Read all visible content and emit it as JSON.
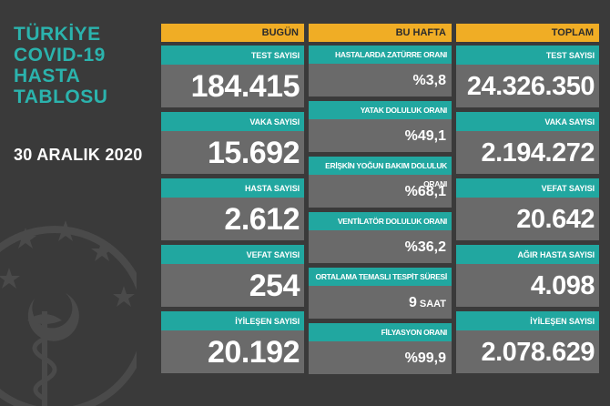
{
  "title_lines": [
    "TÜRKİYE",
    "COVID-19",
    "HASTA",
    "TABLOSU"
  ],
  "date": "30 ARALIK 2020",
  "today": {
    "header": "BUGÜN",
    "items": [
      {
        "label": "TEST SAYISI",
        "value": "184.415"
      },
      {
        "label": "VAKA SAYISI",
        "value": "15.692"
      },
      {
        "label": "HASTA SAYISI",
        "value": "2.612"
      },
      {
        "label": "VEFAT SAYISI",
        "value": "254"
      },
      {
        "label": "İYİLEŞEN SAYISI",
        "value": "20.192"
      }
    ]
  },
  "this_week": {
    "header": "BU HAFTA",
    "items": [
      {
        "label": "HASTALARDA ZATÜRRE ORANI",
        "value": "%3,8"
      },
      {
        "label": "YATAK DOLULUK ORANI",
        "value": "%49,1"
      },
      {
        "label": "ERİŞKİN YOĞUN BAKIM DOLULUK ORANI",
        "value": "%68,1"
      },
      {
        "label": "VENTİLATÖR DOLULUK ORANI",
        "value": "%36,2"
      },
      {
        "label": "ORTALAMA TEMASLI TESPİT SÜRESİ",
        "value": "9",
        "unit": "SAAT"
      },
      {
        "label": "FİLYASYON ORANI",
        "value": "%99,9"
      }
    ]
  },
  "total": {
    "header": "TOPLAM",
    "items": [
      {
        "label": "TEST SAYISI",
        "value": "24.326.350"
      },
      {
        "label": "VAKA SAYISI",
        "value": "2.194.272"
      },
      {
        "label": "VEFAT SAYISI",
        "value": "20.642"
      },
      {
        "label": "AĞIR HASTA SAYISI",
        "value": "4.098"
      },
      {
        "label": "İYİLEŞEN SAYISI",
        "value": "2.078.629"
      }
    ]
  },
  "colors": {
    "background": "#3a3a3a",
    "title": "#2bb3ad",
    "header": "#f0ad25",
    "label": "#21a7a0",
    "value_box": "#6a6a6a"
  },
  "emblem_icon": "ministry-of-health-emblem-icon"
}
